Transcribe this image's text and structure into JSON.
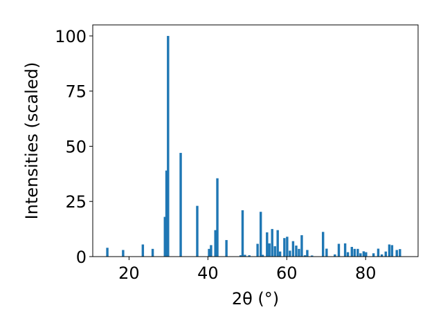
{
  "chart_data": {
    "type": "bar",
    "xlabel": "2θ (°)",
    "ylabel": "Intensities (scaled)",
    "xlim": [
      10.8,
      93.3
    ],
    "ylim": [
      0,
      105
    ],
    "xticks": [
      20,
      40,
      60,
      80
    ],
    "yticks": [
      0,
      25,
      50,
      75,
      100
    ],
    "grid": false,
    "bar_width_deg": 0.6,
    "bar_color": "#1f77b4",
    "x": [
      14.5,
      18.5,
      23.5,
      26.0,
      29.1,
      29.5,
      29.9,
      33.1,
      37.3,
      40.3,
      40.8,
      41.9,
      42.4,
      44.7,
      48.3,
      48.8,
      49.4,
      50.5,
      52.6,
      53.4,
      53.9,
      55.0,
      55.6,
      56.3,
      57.0,
      57.7,
      58.3,
      59.4,
      60.1,
      60.8,
      61.6,
      62.4,
      63.1,
      63.8,
      64.6,
      65.2,
      66.4,
      69.2,
      70.1,
      72.2,
      73.2,
      74.8,
      75.5,
      76.5,
      77.2,
      78.0,
      78.7,
      79.5,
      80.1,
      82.0,
      83.2,
      84.1,
      85.1,
      86.0,
      86.7,
      87.9,
      88.7
    ],
    "values": [
      4.0,
      3.0,
      5.5,
      3.5,
      18.0,
      39.0,
      100.0,
      47.0,
      23.0,
      3.5,
      5.2,
      12.0,
      35.5,
      7.5,
      0.6,
      21.0,
      0.8,
      0.6,
      5.8,
      20.3,
      0.8,
      11.0,
      6.0,
      12.5,
      4.7,
      12.0,
      2.3,
      8.4,
      9.0,
      2.7,
      7.0,
      5.0,
      3.5,
      9.7,
      0.6,
      3.0,
      0.5,
      11.2,
      3.6,
      1.0,
      5.8,
      6.0,
      2.0,
      4.4,
      3.5,
      3.5,
      1.5,
      2.4,
      2.0,
      1.5,
      3.6,
      1.0,
      2.3,
      5.5,
      5.2,
      3.0,
      3.4
    ]
  }
}
